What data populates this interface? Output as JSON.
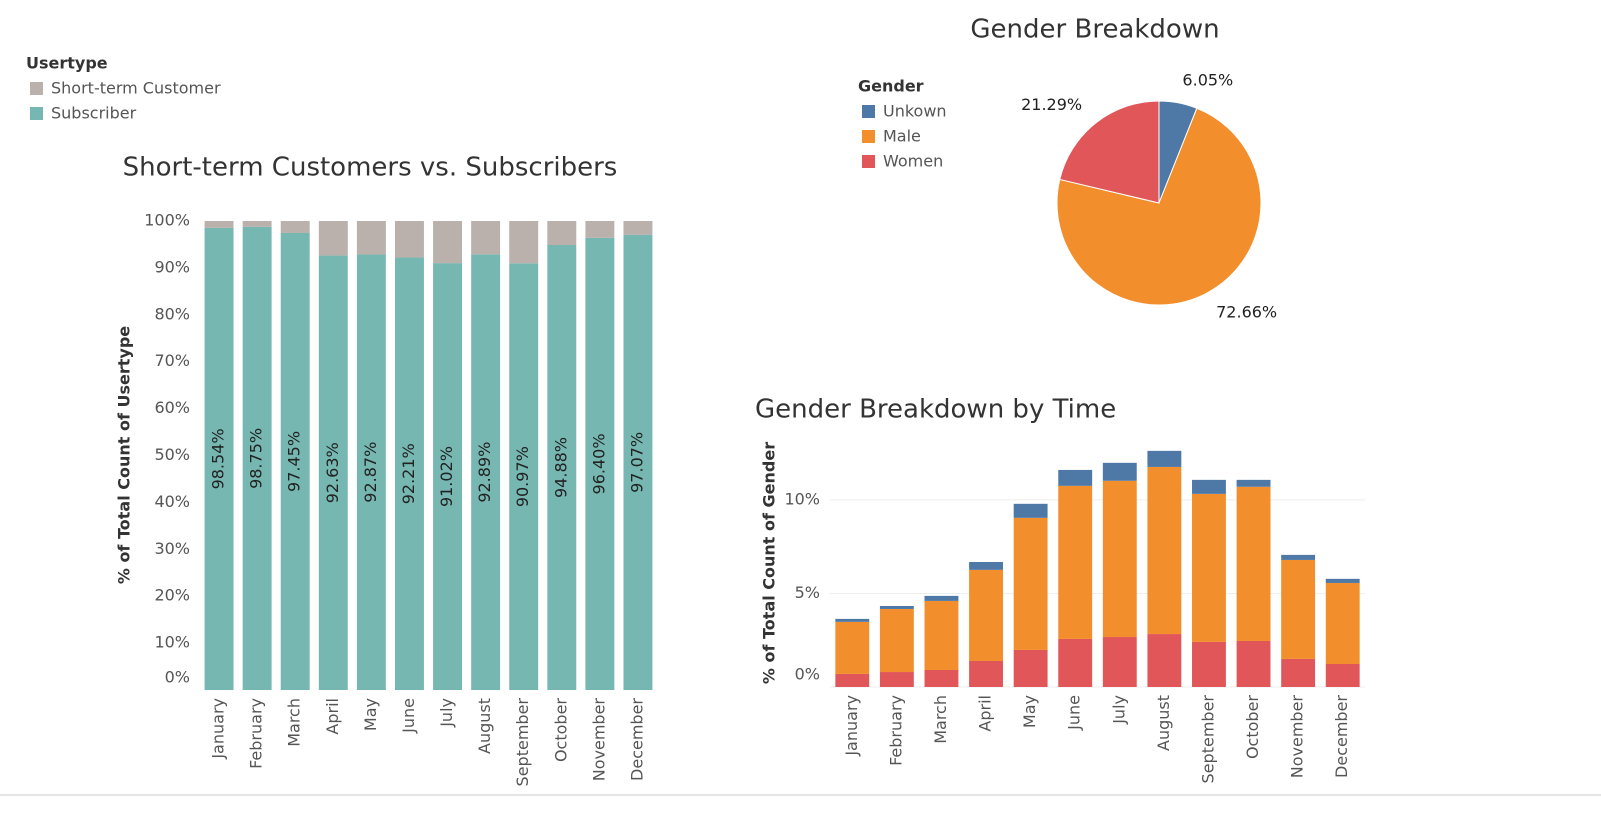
{
  "chart_data": [
    {
      "type": "bar",
      "stacked": true,
      "title": "Short-term Customers vs. Subscribers",
      "legend_title": "Usertype",
      "legend": "top-left",
      "ylabel": "% of Total Count of Usertype",
      "categories": [
        "January",
        "February",
        "March",
        "April",
        "May",
        "June",
        "July",
        "August",
        "September",
        "October",
        "November",
        "December"
      ],
      "series": [
        {
          "name": "Short-term Customer",
          "color": "#bab0ac",
          "values": [
            1.46,
            1.25,
            2.55,
            7.37,
            7.13,
            7.79,
            8.98,
            7.11,
            9.03,
            5.12,
            3.6,
            2.93
          ]
        },
        {
          "name": "Subscriber",
          "color": "#76b7b2",
          "values": [
            98.54,
            98.75,
            97.45,
            92.63,
            92.87,
            92.21,
            91.02,
            92.89,
            90.97,
            94.88,
            96.4,
            97.07
          ],
          "value_labels": [
            "98.54%",
            "98.75%",
            "97.45%",
            "92.63%",
            "92.87%",
            "92.21%",
            "91.02%",
            "92.89%",
            "90.97%",
            "94.88%",
            "96.40%",
            "97.07%"
          ]
        }
      ],
      "ylim": [
        0,
        100
      ],
      "yticks": [
        {
          "value": 0,
          "label": "0%"
        },
        {
          "value": 10,
          "label": "10%"
        },
        {
          "value": 20,
          "label": "20%"
        },
        {
          "value": 30,
          "label": "30%"
        },
        {
          "value": 40,
          "label": "40%"
        },
        {
          "value": 50,
          "label": "50%"
        },
        {
          "value": 60,
          "label": "60%"
        },
        {
          "value": 70,
          "label": "70%"
        },
        {
          "value": 80,
          "label": "80%"
        },
        {
          "value": 90,
          "label": "90%"
        },
        {
          "value": 100,
          "label": "100%"
        }
      ],
      "grid": false
    },
    {
      "type": "pie",
      "title": "Gender Breakdown",
      "legend_title": "Gender",
      "legend": "top-left",
      "categories": [
        "Unkown",
        "Male",
        "Women"
      ],
      "values": [
        6.05,
        72.66,
        21.29
      ],
      "value_labels": [
        "6.05%",
        "72.66%",
        "21.29%"
      ],
      "colors": [
        "#4e79a7",
        "#f28e2b",
        "#e15759"
      ]
    },
    {
      "type": "bar",
      "stacked": true,
      "title": "Gender Breakdown by Time",
      "ylabel": "% of Total Count of Gender",
      "categories": [
        "January",
        "February",
        "March",
        "April",
        "May",
        "June",
        "July",
        "August",
        "September",
        "October",
        "November",
        "December"
      ],
      "series": [
        {
          "color": "#4e79a7",
          "values": [
            0.16,
            0.16,
            0.27,
            0.42,
            0.75,
            0.85,
            0.96,
            0.86,
            0.75,
            0.37,
            0.27,
            0.22
          ]
        },
        {
          "color": "#f28e2b",
          "values": [
            2.78,
            3.37,
            3.69,
            4.87,
            7.06,
            8.18,
            8.35,
            8.93,
            7.91,
            8.24,
            5.29,
            4.33
          ]
        },
        {
          "color": "#e15759",
          "values": [
            0.7,
            0.8,
            0.91,
            1.39,
            1.98,
            2.57,
            2.67,
            2.83,
            2.41,
            2.46,
            1.5,
            1.23
          ]
        }
      ],
      "ylim": [
        0,
        13.2
      ],
      "yticks": [
        {
          "value": 0,
          "label": "0%"
        },
        {
          "value": 5,
          "label": "5%"
        },
        {
          "value": 10,
          "label": "10%"
        }
      ],
      "grid": true
    }
  ]
}
